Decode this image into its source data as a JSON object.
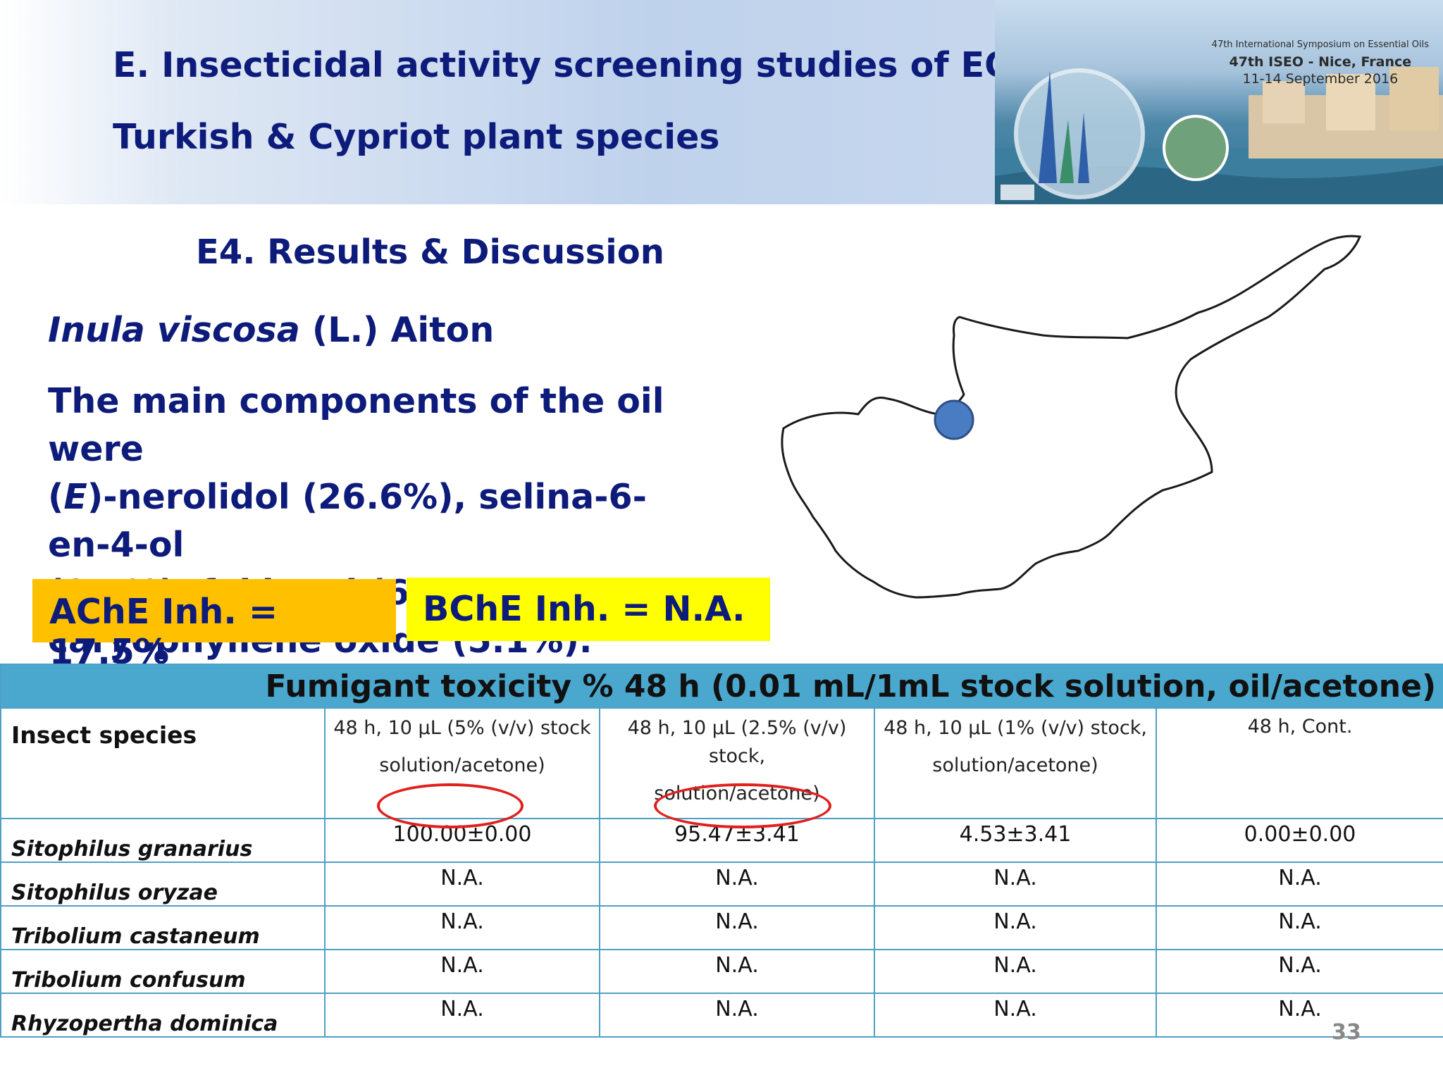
{
  "header": {
    "title_line1": "E. Insecticidal activity screening studies of EO from",
    "title_line2": "Turkish & Cypriot plant species",
    "banner": {
      "line1": "47th International Symposium on Essential Oils",
      "line2": "47th ISEO - Nice, France",
      "line3": "11-14 September 2016"
    }
  },
  "section": "E4. Results & Discussion",
  "species": {
    "italic": "Inula viscosa",
    "authority": "(L.) Aiton"
  },
  "description": {
    "line1": "The main components of the oil were",
    "line2_a": "(",
    "line2_b": "E",
    "line2_c": ")-nerolidol (26.6%), selina-6-en-4-ol",
    "line3": "(8.5%), fokienol (6.8%) and",
    "line4": "caryophyllene oxide (5.1%)."
  },
  "ache": "AChE Inh. = 17.5%",
  "bche": "BChE Inh. = N.A.",
  "table": {
    "title": "Fumigant toxicity % 48 h (0.01 mL/1mL stock solution, oil/acetone)",
    "row_header": "Insect species",
    "columns": [
      {
        "l1": "48 h,  10 µL (5% (v/v) stock",
        "l2": "solution/acetone)"
      },
      {
        "l1": "48 h, 10 µL (2.5% (v/v) stock,",
        "l2": "solution/acetone)"
      },
      {
        "l1": "48 h, 10 µL (1% (v/v) stock,",
        "l2": "solution/acetone)"
      },
      {
        "l1": "48 h, Cont.",
        "l2": ""
      }
    ],
    "rows": [
      {
        "species": "Sitophilus granarius",
        "values": [
          "100.00±0.00",
          "95.47±3.41",
          "4.53±3.41",
          "0.00±0.00"
        ]
      },
      {
        "species": "Sitophilus oryzae",
        "values": [
          "N.A.",
          "N.A.",
          "N.A.",
          "N.A."
        ]
      },
      {
        "species": "Tribolium castaneum",
        "values": [
          "N.A.",
          "N.A.",
          "N.A.",
          "N.A."
        ]
      },
      {
        "species": "Tribolium confusum",
        "values": [
          "N.A.",
          "N.A.",
          "N.A.",
          "N.A."
        ]
      },
      {
        "species": "Rhyzopertha dominica",
        "values": [
          "N.A.",
          "N.A.",
          "N.A.",
          "N.A."
        ]
      }
    ]
  },
  "page_number": "33",
  "colors": {
    "title": "#0d1b7a",
    "ache_box": "#ffc000",
    "bche_box": "#ffff00",
    "table_header": "#4aa8cf",
    "highlight_circle": "#e0201e",
    "map_marker": "#4a7cc4"
  }
}
